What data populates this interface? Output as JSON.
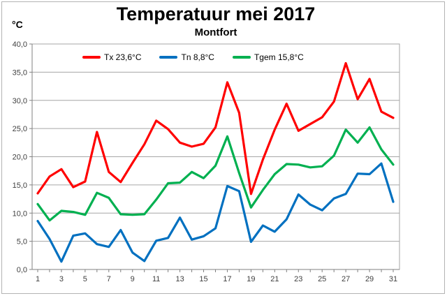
{
  "header": {
    "title": "Temperatuur mei 2017",
    "subtitle": "Montfort",
    "unit_label": "°C"
  },
  "legend": [
    {
      "label": "Tx 23,6°C",
      "color": "#ff0000"
    },
    {
      "label": "Tn 8,8°C",
      "color": "#0070c0"
    },
    {
      "label": "Tgem 15,8°C",
      "color": "#00b050"
    }
  ],
  "chart_data": {
    "type": "line",
    "title": "Temperatuur mei 2017",
    "subtitle": "Montfort",
    "ylabel": "°C",
    "xlabel": "",
    "ylim": [
      0,
      40
    ],
    "y_tick_step": 5,
    "y_tick_labels": [
      "0,0",
      "5,0",
      "10,0",
      "15,0",
      "20,0",
      "25,0",
      "30,0",
      "35,0",
      "40,0"
    ],
    "x": [
      1,
      2,
      3,
      4,
      5,
      6,
      7,
      8,
      9,
      10,
      11,
      12,
      13,
      14,
      15,
      16,
      17,
      18,
      19,
      20,
      21,
      22,
      23,
      24,
      25,
      26,
      27,
      28,
      29,
      30,
      31
    ],
    "x_labeled_ticks": [
      1,
      3,
      5,
      7,
      9,
      11,
      13,
      15,
      17,
      19,
      21,
      23,
      25,
      27,
      29,
      31
    ],
    "grid": "horizontal",
    "legend_position": "top-center",
    "series": [
      {
        "name": "Tx 23,6°C",
        "color": "#ff0000",
        "values": [
          13.5,
          16.5,
          17.8,
          14.6,
          15.6,
          24.4,
          17.3,
          15.5,
          18.9,
          22.2,
          26.4,
          24.9,
          22.5,
          21.8,
          22.3,
          25.2,
          33.2,
          27.8,
          13.4,
          19.5,
          24.8,
          29.4,
          24.6,
          25.8,
          27.0,
          29.8,
          36.6,
          30.2,
          33.8,
          28.0,
          26.9
        ]
      },
      {
        "name": "Tn 8,8°C",
        "color": "#0070c0",
        "values": [
          8.6,
          5.4,
          1.4,
          6.0,
          6.4,
          4.5,
          4.0,
          7.0,
          3.0,
          1.5,
          5.1,
          5.6,
          9.2,
          5.3,
          5.9,
          7.3,
          14.8,
          13.9,
          4.9,
          7.8,
          6.7,
          8.9,
          13.3,
          11.5,
          10.5,
          12.6,
          13.4,
          17.0,
          16.9,
          18.8,
          12.0
        ]
      },
      {
        "name": "Tgem 15,8°C",
        "color": "#00b050",
        "values": [
          11.6,
          8.7,
          10.4,
          10.2,
          9.7,
          13.6,
          12.7,
          9.8,
          9.7,
          9.8,
          12.4,
          15.3,
          15.4,
          17.3,
          16.2,
          18.4,
          23.6,
          17.1,
          11.0,
          14.1,
          16.9,
          18.7,
          18.6,
          18.1,
          18.3,
          20.2,
          24.8,
          22.5,
          25.2,
          21.3,
          18.6
        ]
      }
    ]
  },
  "style": {
    "grid_color": "#a6a6a6",
    "axis_color": "#808080",
    "tick_label_color": "#3f3f3f"
  }
}
